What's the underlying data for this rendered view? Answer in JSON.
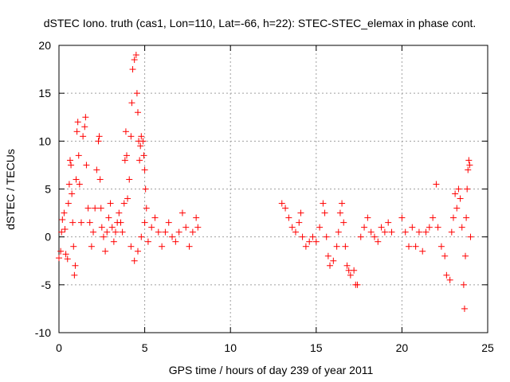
{
  "chart_data": {
    "type": "scatter",
    "title": "dSTEC Iono. truth (cas1, Lon=110, Lat=-66, h=22): STEC-STEC_elemax in phase cont.",
    "xlabel": "GPS time / hours of day 239 of year 2011",
    "ylabel": "dSTEC  / TECUs",
    "xlim": [
      0,
      25
    ],
    "ylim": [
      -10,
      20
    ],
    "x_ticks": [
      0,
      5,
      10,
      15,
      20,
      25
    ],
    "y_ticks": [
      -10,
      -5,
      0,
      5,
      10,
      15,
      20
    ],
    "x_tick_labels": [
      "0",
      "5",
      "10",
      "15",
      "20",
      "25"
    ],
    "y_tick_labels": [
      "-10",
      "-5",
      "0",
      "5",
      "10",
      "15",
      "20"
    ],
    "grid": true,
    "legend": "none",
    "marker": "plus",
    "series_color": "#ff0000",
    "series": [
      {
        "points": [
          [
            0.0,
            -2.2
          ],
          [
            0.1,
            -1.5
          ],
          [
            0.15,
            0.5
          ],
          [
            0.2,
            1.8
          ],
          [
            0.3,
            2.5
          ],
          [
            0.35,
            0.8
          ],
          [
            0.4,
            -1.8
          ],
          [
            0.5,
            -2.3
          ],
          [
            0.55,
            3.5
          ],
          [
            0.6,
            5.5
          ],
          [
            0.65,
            8.0
          ],
          [
            0.7,
            7.5
          ],
          [
            0.75,
            4.5
          ],
          [
            0.8,
            1.5
          ],
          [
            0.85,
            -1.0
          ],
          [
            0.9,
            -4.0
          ],
          [
            0.95,
            -3.0
          ],
          [
            1.0,
            6.0
          ],
          [
            1.05,
            11.0
          ],
          [
            1.1,
            12.0
          ],
          [
            1.15,
            8.5
          ],
          [
            1.2,
            5.5
          ],
          [
            1.3,
            1.5
          ],
          [
            1.4,
            10.5
          ],
          [
            1.5,
            11.5
          ],
          [
            1.55,
            12.5
          ],
          [
            1.6,
            7.5
          ],
          [
            1.7,
            3.0
          ],
          [
            1.8,
            1.5
          ],
          [
            1.9,
            -1.0
          ],
          [
            2.0,
            0.5
          ],
          [
            2.1,
            3.0
          ],
          [
            2.2,
            7.0
          ],
          [
            2.3,
            10.0
          ],
          [
            2.35,
            10.5
          ],
          [
            2.4,
            6.0
          ],
          [
            2.45,
            3.0
          ],
          [
            2.5,
            1.0
          ],
          [
            2.6,
            0.0
          ],
          [
            2.7,
            -1.5
          ],
          [
            2.8,
            0.5
          ],
          [
            2.9,
            2.0
          ],
          [
            3.0,
            3.5
          ],
          [
            3.1,
            1.0
          ],
          [
            3.2,
            -0.5
          ],
          [
            3.3,
            0.5
          ],
          [
            3.4,
            1.5
          ],
          [
            3.5,
            2.5
          ],
          [
            3.6,
            1.5
          ],
          [
            3.7,
            0.5
          ],
          [
            3.8,
            3.5
          ],
          [
            3.85,
            8.0
          ],
          [
            3.9,
            11.0
          ],
          [
            3.95,
            8.5
          ],
          [
            4.0,
            4.0
          ],
          [
            4.1,
            6.0
          ],
          [
            4.2,
            10.5
          ],
          [
            4.25,
            14.0
          ],
          [
            4.3,
            17.5
          ],
          [
            4.4,
            18.5
          ],
          [
            4.5,
            19.0
          ],
          [
            4.55,
            15.0
          ],
          [
            4.6,
            13.0
          ],
          [
            4.65,
            10.0
          ],
          [
            4.7,
            8.0
          ],
          [
            4.75,
            9.5
          ],
          [
            4.8,
            10.5
          ],
          [
            4.9,
            10.0
          ],
          [
            4.95,
            8.5
          ],
          [
            5.0,
            7.0
          ],
          [
            5.05,
            5.0
          ],
          [
            5.1,
            3.0
          ],
          [
            4.2,
            -1.0
          ],
          [
            4.4,
            -2.5
          ],
          [
            4.6,
            -1.5
          ],
          [
            4.8,
            0.0
          ],
          [
            5.0,
            1.5
          ],
          [
            5.2,
            -0.5
          ],
          [
            5.4,
            1.0
          ],
          [
            5.6,
            2.0
          ],
          [
            5.8,
            0.5
          ],
          [
            6.0,
            -1.0
          ],
          [
            6.2,
            0.5
          ],
          [
            6.4,
            1.5
          ],
          [
            6.6,
            0.0
          ],
          [
            6.8,
            -0.5
          ],
          [
            7.0,
            0.5
          ],
          [
            7.2,
            2.5
          ],
          [
            7.4,
            1.0
          ],
          [
            7.6,
            -1.0
          ],
          [
            7.8,
            0.5
          ],
          [
            8.0,
            2.0
          ],
          [
            8.1,
            1.0
          ],
          [
            13.0,
            3.5
          ],
          [
            13.2,
            3.0
          ],
          [
            13.4,
            2.0
          ],
          [
            13.6,
            1.0
          ],
          [
            13.8,
            0.5
          ],
          [
            14.0,
            1.5
          ],
          [
            14.1,
            2.5
          ],
          [
            14.2,
            0.0
          ],
          [
            14.4,
            -1.0
          ],
          [
            14.6,
            -0.5
          ],
          [
            14.8,
            0.0
          ],
          [
            15.0,
            -0.5
          ],
          [
            15.2,
            1.0
          ],
          [
            15.4,
            3.5
          ],
          [
            15.5,
            2.5
          ],
          [
            15.6,
            0.0
          ],
          [
            15.7,
            -2.0
          ],
          [
            15.8,
            -3.0
          ],
          [
            16.0,
            -2.5
          ],
          [
            16.2,
            -1.0
          ],
          [
            16.3,
            0.5
          ],
          [
            16.4,
            2.5
          ],
          [
            16.5,
            3.5
          ],
          [
            16.6,
            1.5
          ],
          [
            16.7,
            -1.0
          ],
          [
            16.8,
            -3.0
          ],
          [
            16.9,
            -3.5
          ],
          [
            17.0,
            -4.0
          ],
          [
            17.2,
            -3.5
          ],
          [
            17.3,
            -5.0
          ],
          [
            17.4,
            -5.0
          ],
          [
            17.6,
            0.0
          ],
          [
            17.8,
            1.0
          ],
          [
            18.0,
            2.0
          ],
          [
            18.2,
            0.5
          ],
          [
            18.4,
            0.0
          ],
          [
            18.6,
            -0.5
          ],
          [
            18.8,
            1.0
          ],
          [
            19.0,
            0.5
          ],
          [
            19.2,
            1.5
          ],
          [
            19.4,
            0.5
          ],
          [
            20.0,
            2.0
          ],
          [
            20.2,
            0.5
          ],
          [
            20.4,
            -1.0
          ],
          [
            20.6,
            1.0
          ],
          [
            20.8,
            -1.0
          ],
          [
            21.0,
            0.5
          ],
          [
            21.2,
            -1.5
          ],
          [
            21.4,
            0.5
          ],
          [
            21.6,
            1.0
          ],
          [
            21.8,
            2.0
          ],
          [
            22.0,
            5.5
          ],
          [
            22.1,
            1.0
          ],
          [
            22.3,
            -1.0
          ],
          [
            22.5,
            -2.0
          ],
          [
            22.6,
            -4.0
          ],
          [
            22.8,
            -4.5
          ],
          [
            22.9,
            0.5
          ],
          [
            23.0,
            2.0
          ],
          [
            23.1,
            4.5
          ],
          [
            23.2,
            3.0
          ],
          [
            23.3,
            5.0
          ],
          [
            23.4,
            4.0
          ],
          [
            23.5,
            1.0
          ],
          [
            23.6,
            -5.0
          ],
          [
            23.65,
            -7.5
          ],
          [
            23.7,
            -2.0
          ],
          [
            23.75,
            2.0
          ],
          [
            23.8,
            5.0
          ],
          [
            23.85,
            7.0
          ],
          [
            23.9,
            8.0
          ],
          [
            23.95,
            7.5
          ],
          [
            24.0,
            0.0
          ]
        ]
      }
    ]
  }
}
